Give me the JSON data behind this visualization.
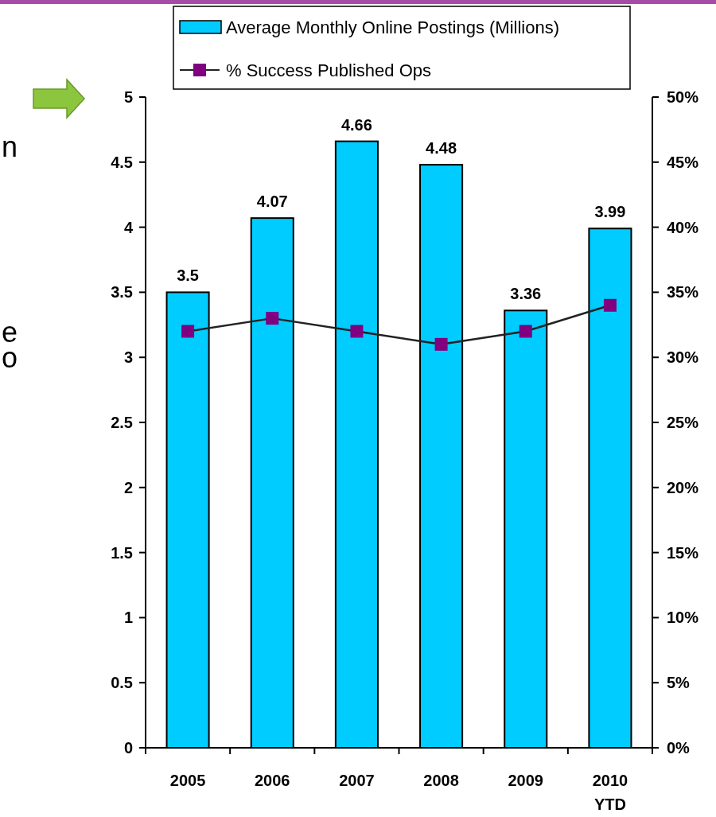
{
  "chart_data": {
    "type": "bar",
    "categories": [
      "2005",
      "2006",
      "2007",
      "2008",
      "2009",
      "2010\nYTD"
    ],
    "series": [
      {
        "name": "Average Monthly Online Postings (Millions)",
        "color": "#00ccff",
        "values": [
          3.5,
          4.07,
          4.66,
          4.48,
          3.36,
          3.99
        ],
        "value_labels": [
          "3.5",
          "4.07",
          "4.66",
          "4.48",
          "3.36",
          "3.99"
        ]
      },
      {
        "name": "% Success Published Ops",
        "type": "line",
        "axis": "y2",
        "color": "#800080",
        "marker": "square",
        "values": [
          32,
          33,
          32,
          31,
          32,
          34
        ]
      }
    ],
    "ylim": [
      0,
      5
    ],
    "yticks": [
      0,
      0.5,
      1,
      1.5,
      2,
      2.5,
      3,
      3.5,
      4,
      4.5,
      5
    ],
    "y2lim": [
      0,
      50
    ],
    "y2ticks": [
      {
        "value": 0,
        "label": "0%"
      },
      {
        "value": 5,
        "label": "5%"
      },
      {
        "value": 10,
        "label": "10%"
      },
      {
        "value": 15,
        "label": "15%"
      },
      {
        "value": 20,
        "label": "20%"
      },
      {
        "value": 25,
        "label": "25%"
      },
      {
        "value": 30,
        "label": "30%"
      },
      {
        "value": 35,
        "label": "35%"
      },
      {
        "value": 40,
        "label": "40%"
      },
      {
        "value": 45,
        "label": "45%"
      },
      {
        "value": 50,
        "label": "50%"
      }
    ],
    "legend": "top",
    "grid": false,
    "annotations": [
      "n",
      "e",
      "o"
    ]
  }
}
